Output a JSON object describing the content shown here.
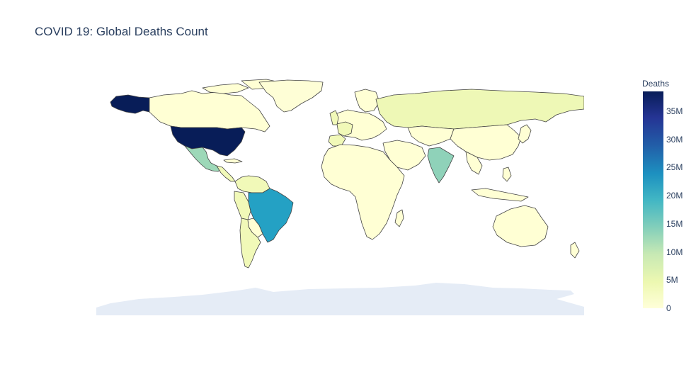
{
  "title": "COVID 19: Global Deaths Count",
  "colorbar": {
    "title": "Deaths",
    "ticks": [
      {
        "label": "35M",
        "value": 35
      },
      {
        "label": "30M",
        "value": 30
      },
      {
        "label": "25M",
        "value": 25
      },
      {
        "label": "20M",
        "value": 20
      },
      {
        "label": "15M",
        "value": 15
      },
      {
        "label": "10M",
        "value": 10
      },
      {
        "label": "5M",
        "value": 5
      },
      {
        "label": "0",
        "value": 0
      }
    ],
    "max_value": 38.5
  },
  "colors": {
    "ocean": "#ffffff",
    "antarctica": "#e5ecf6",
    "border": "#444444",
    "usa": "#081d58",
    "brazil": "#24a1c4",
    "india": "#8fd2b9",
    "mexico": "#9dd8b8",
    "pale": "#ffffd4",
    "light": "#f1f9b8",
    "russia": "#eef8b6",
    "greenland": "#fefed6"
  }
}
